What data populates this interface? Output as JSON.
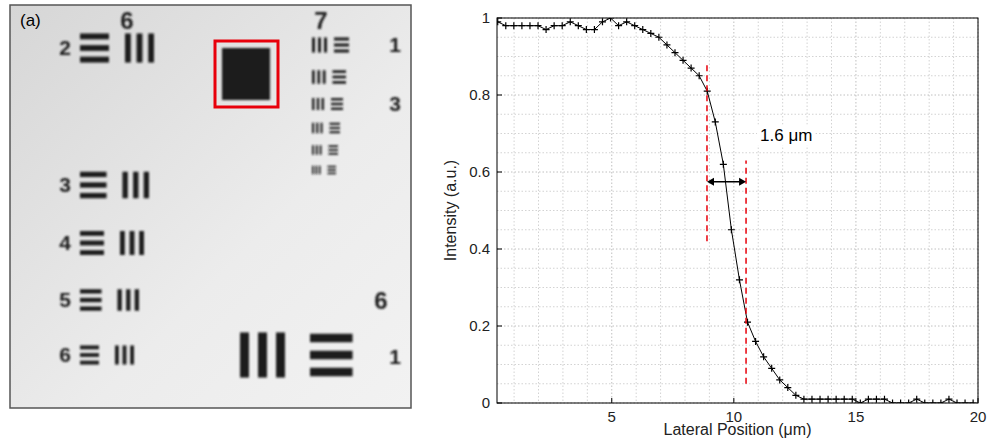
{
  "image_panel": {
    "label": "(a)",
    "group_labels": [
      "6",
      "7",
      "6"
    ],
    "element_labels": [
      "2",
      "3",
      "4",
      "5",
      "6",
      "1",
      "3",
      "1"
    ]
  },
  "chart_data": {
    "type": "line",
    "x_label": "Lateral Position (μm)",
    "y_label": "Intensity (a.u.)",
    "x": [
      0.33,
      0.66,
      0.99,
      1.32,
      1.65,
      1.98,
      2.31,
      2.64,
      2.97,
      3.3,
      3.63,
      3.96,
      4.29,
      4.62,
      4.95,
      5.28,
      5.61,
      5.94,
      6.27,
      6.6,
      6.93,
      7.26,
      7.59,
      7.92,
      8.25,
      8.58,
      8.91,
      9.24,
      9.57,
      9.9,
      10.23,
      10.56,
      10.89,
      11.22,
      11.55,
      11.88,
      12.21,
      12.54,
      12.87,
      13.2,
      13.53,
      13.86,
      14.19,
      14.52,
      14.85,
      15.18,
      15.51,
      15.84,
      16.17,
      16.5,
      16.83,
      17.16,
      17.49,
      17.82,
      18.15,
      18.48,
      18.81,
      19.14,
      19.47,
      19.8
    ],
    "values": [
      0.99,
      0.98,
      0.98,
      0.98,
      0.98,
      0.98,
      0.97,
      0.98,
      0.98,
      0.99,
      0.98,
      0.97,
      0.97,
      0.99,
      1.0,
      0.98,
      0.99,
      0.98,
      0.97,
      0.96,
      0.95,
      0.93,
      0.91,
      0.89,
      0.87,
      0.85,
      0.81,
      0.73,
      0.62,
      0.45,
      0.32,
      0.21,
      0.16,
      0.12,
      0.09,
      0.06,
      0.04,
      0.02,
      0.01,
      0.01,
      0.01,
      0.01,
      0.01,
      0.01,
      0.01,
      0.0,
      0.01,
      0.01,
      0.01,
      0.0,
      0.0,
      0.0,
      0.01,
      0.0,
      0.0,
      0.0,
      0.01,
      0.0,
      0.0,
      0.0
    ],
    "color": "#000000",
    "marker": "plus",
    "line_style": "solid",
    "xlim": [
      0.3,
      20
    ],
    "xticks": [
      5,
      10,
      15,
      20
    ],
    "ylim": [
      0,
      1
    ],
    "yticks": [
      0,
      0.2,
      0.4,
      0.6,
      0.8,
      1
    ],
    "grid": true,
    "annotations": [
      {
        "text": "1.6 μm",
        "x": [
          8.9,
          10.5
        ],
        "y": 0.575,
        "color": "#e8000b"
      }
    ],
    "guide_lines": [
      {
        "x": 8.9,
        "y": [
          0.42,
          0.88
        ],
        "color": "#e8000b"
      },
      {
        "x": 10.5,
        "y": [
          0.05,
          0.63
        ],
        "color": "#e8000b"
      }
    ]
  }
}
